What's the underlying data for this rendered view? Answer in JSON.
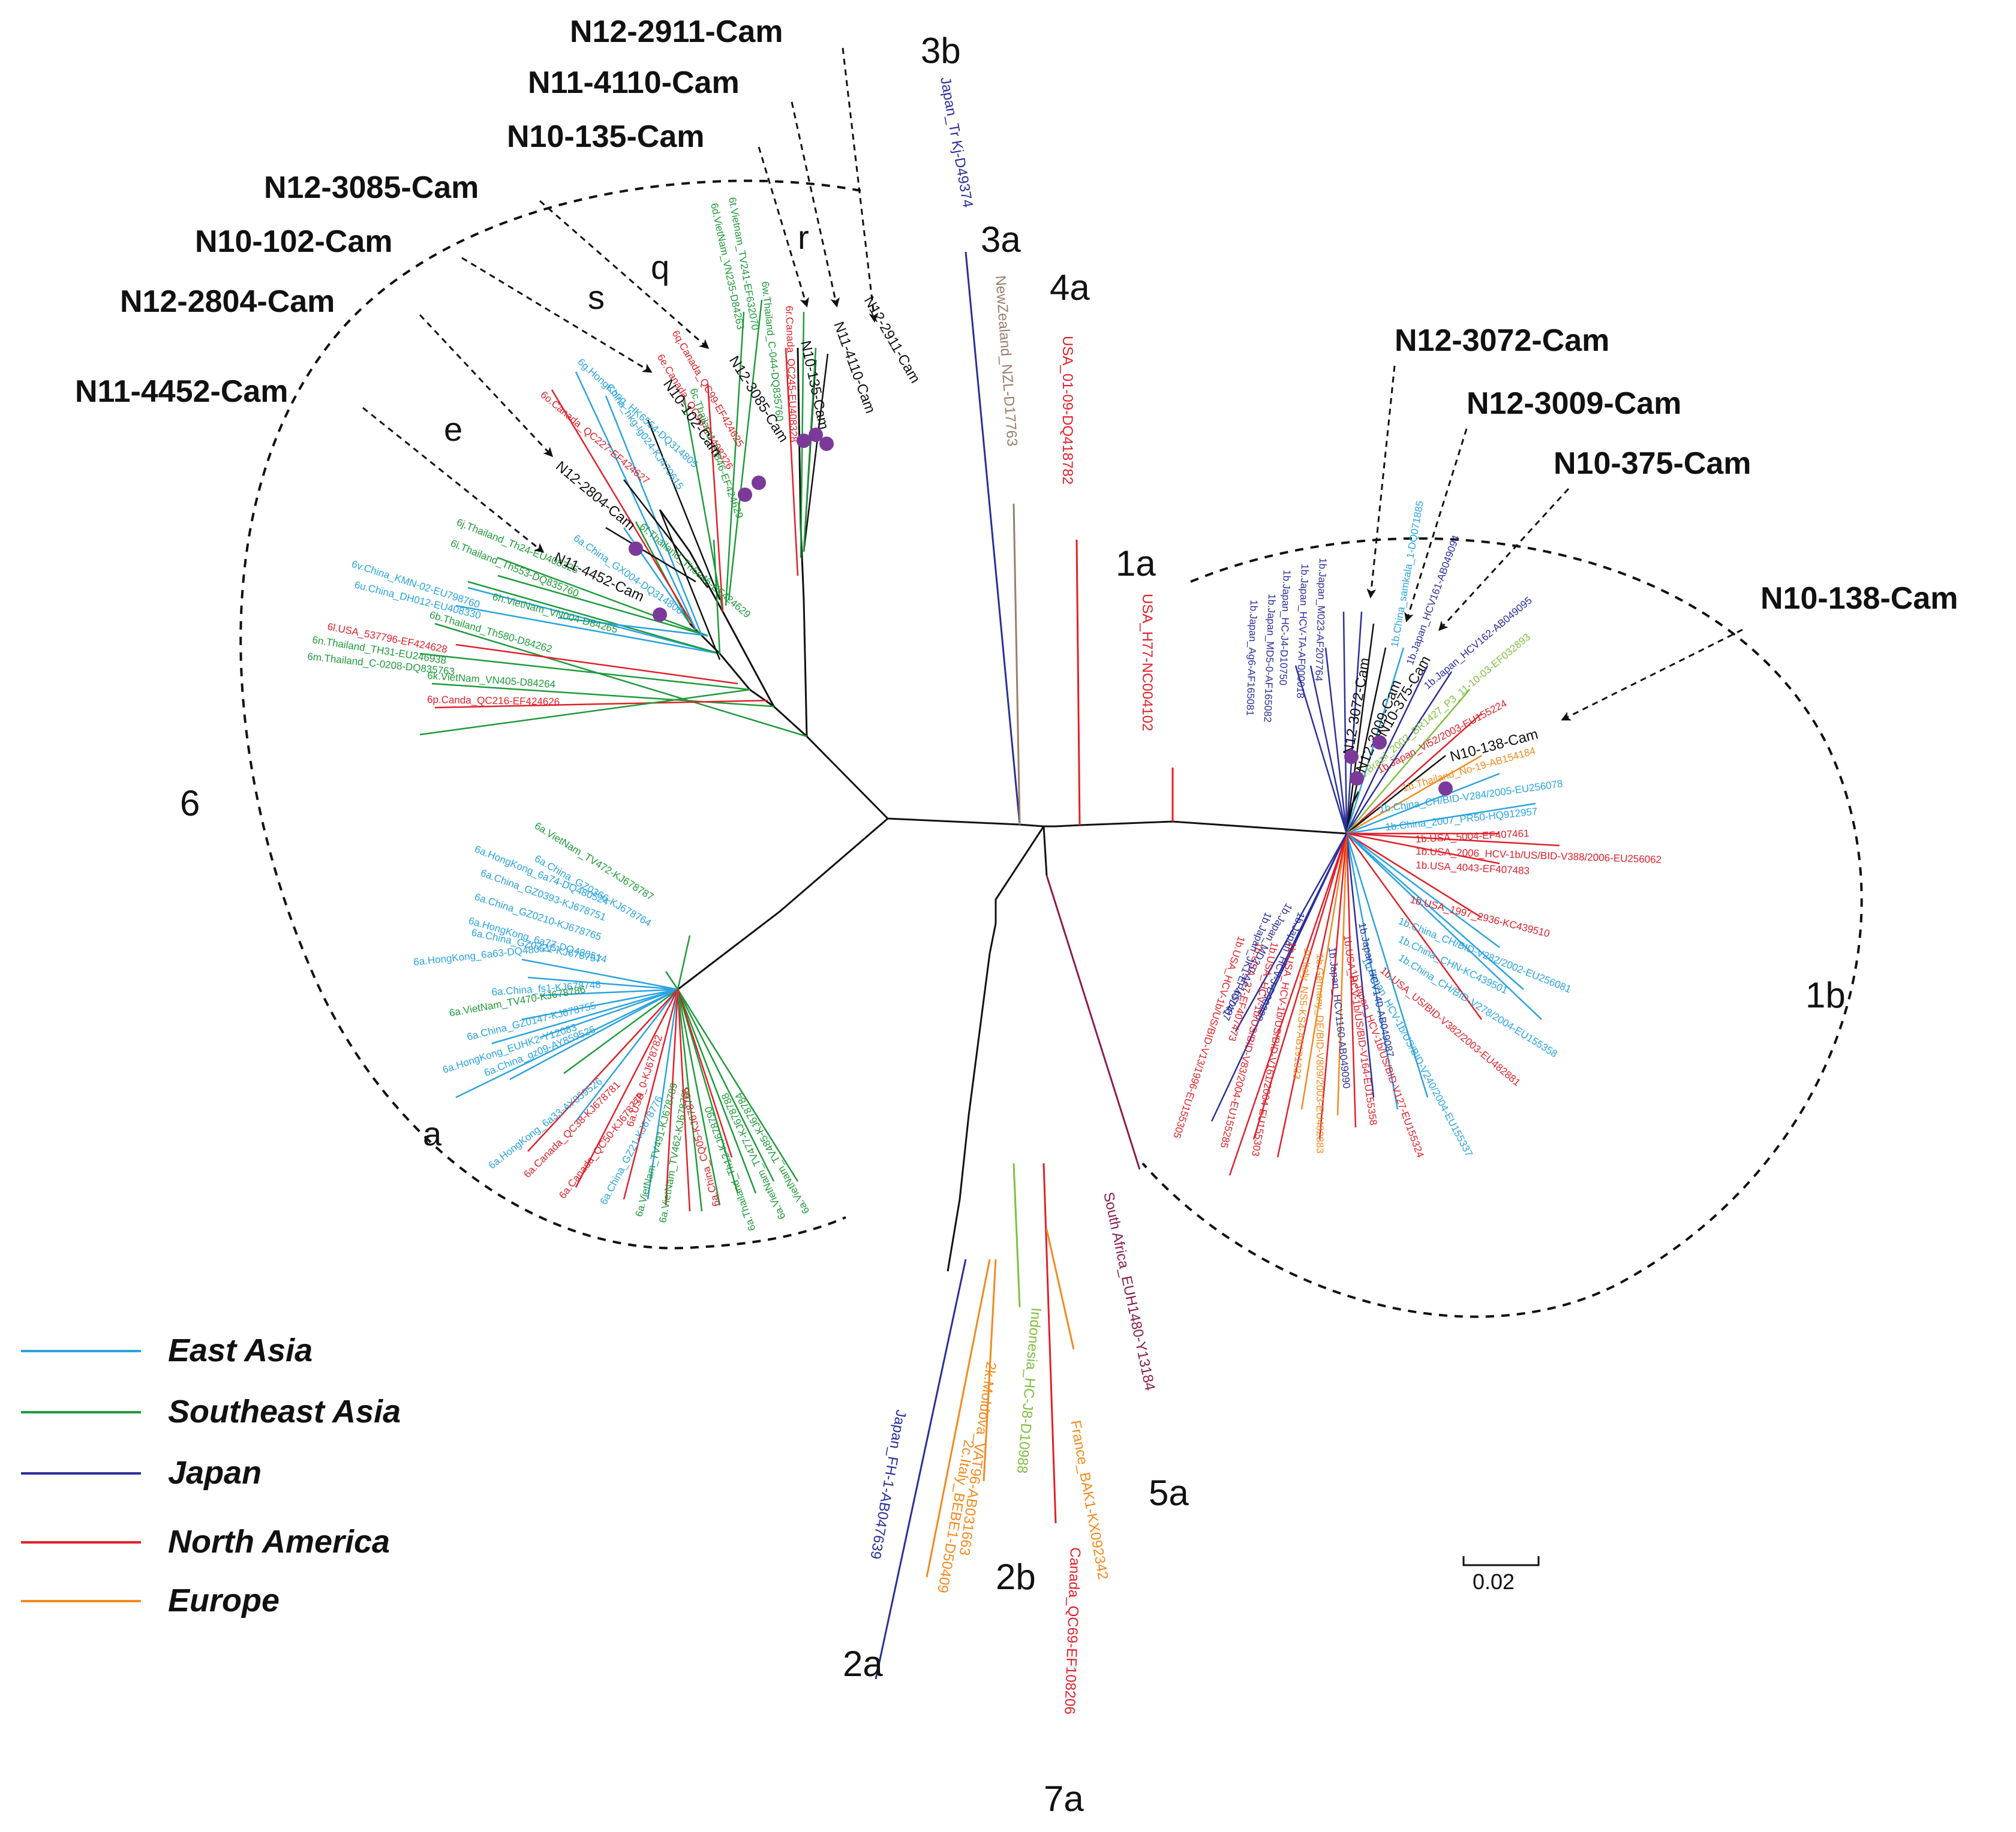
{
  "colors": {
    "east_asia": "#2aa3e0",
    "southeast_asia": "#1e9a3a",
    "japan": "#2b2f9a",
    "north_america": "#e0202a",
    "europe": "#f28a1e",
    "oceania": "#9a7d6a",
    "africa": "#8a1d4e",
    "indonesia": "#7fbf3f",
    "cambodia": "#111111",
    "marker": "#7b3a9a"
  },
  "legend": {
    "east_asia": "East Asia",
    "southeast_asia": "Southeast Asia",
    "japan": "Japan",
    "north_america": "North America",
    "europe": "Europe"
  },
  "scale_bar": {
    "value": 0.02,
    "label": "0.02"
  },
  "genotype_labels": {
    "g6": "6",
    "g1a": "1a",
    "g1b": "1b",
    "g3a": "3a",
    "g3b": "3b",
    "g4a": "4a",
    "g2a": "2a",
    "g2b": "2b",
    "g5a": "5a",
    "g7a": "7a"
  },
  "subtype_labels": {
    "a": "a",
    "e": "e",
    "s": "s",
    "q": "q",
    "r": "r"
  },
  "cambodian_isolates": {
    "n12_2911": "N12-2911-Cam",
    "n11_4110": "N11-4110-Cam",
    "n10_135": "N10-135-Cam",
    "n12_3085": "N12-3085-Cam",
    "n10_102": "N10-102-Cam",
    "n12_2804": "N12-2804-Cam",
    "n11_4452": "N11-4452-Cam",
    "n12_3072": "N12-3072-Cam",
    "n12_3009": "N12-3009-Cam",
    "n10_375": "N10-375-Cam",
    "n10_138": "N10-138-Cam"
  },
  "reference_tips": {
    "t3b": "Japan_Tr Kj-D49374",
    "t3a": "NewZealand_NZL-D17763",
    "t4a": "USA_01-09-DQ418782",
    "t1a": "USA_H77-NC004102",
    "t2a": "Japan_FH-1-AB047639",
    "t2c": "2c.Italy_BEBE1-D50409",
    "t2k": "2k.Moldova_VAT96-AB031663",
    "t2b": "Indonesia_HC-J8-D10988",
    "t7a": "Canada_QC69-EF108206",
    "t_france": "France_BAK1-KX092342",
    "t5a": "South Africa_EUH1480-Y13184",
    "g6_tips": [
      "6b.Thailand_Th580-D84262",
      "6k.VietNam_VN405-D84264",
      "6p.Canda_QC216-EF424626",
      "6m.Thailand_C-0208-DQ835763",
      "6n.Thailand_TH31-EU246938",
      "6l.USA_537796-EF424628",
      "6u.China_DH012-EU408330",
      "6v.China_KMN-02-EU798760",
      "6h.VietNam_VN004-D84265",
      "6i.Thailand_Th553-DQ835760",
      "6j.Thailand_Th24-EU408325",
      "6a.China_GX004-DQ314806",
      "6f.Thailand_Th6e46-EF424629",
      "6o.Canada_QC227-EF424627",
      "6g.HongKong_HK6554-DQ314805",
      "China_hkg-lg024-KJ470615",
      "6e.Canada_QC98-EU408326",
      "6q.Canada_QC99-EF424625",
      "6c.Thailand_Th846-EF424629",
      "6d.VietNam_VN235-D84263",
      "6t.Vietnam_TV241-EF632070",
      "6r.Canada_QC245-EU408328",
      "6w.Thailand_C-044-DQ835760",
      "6a.VietNam_TV472-KJ678787",
      "6a.China_GZ0366-KJ678764",
      "6a.HongKong_6a74-DQ480524",
      "6a.China_GZ0393-KJ678751",
      "6a.China_GZ0210-KJ678765",
      "6a.HongKong_6a77-DQ480514",
      "6a.China_GZ0221-KJ678757",
      "6a.HongKong_6a63-DQ480513",
      "6a.China_fs1-KJ678748",
      "6a.VietNam_TV470-KJ678786",
      "6a.China_GZ0147-KJ678755",
      "6a.HongKong_EUHK2-Y12083",
      "6a.China_gz09-AY859526",
      "6a.HongKong_6a33-AY859526",
      "6a.Canada_QC38-KJ678781",
      "6a.Canada_QC50-KJ678779",
      "6a.China_GZ21-KJ678776",
      "6a.USA_0-KJ678782",
      "6a.VietNam_TV491-KJ678789",
      "6a.VietNam_TV462-KJ678785",
      "6a.Thailand_Th12-KJ678790",
      "6a.VietNam_TV477-KJ678788",
      "6a.China_CQ05-KJ678766",
      "6a.VietNam_TV485-KJ678784"
    ],
    "g1b_tips": [
      "1b.Japan_Ag6-AF165081",
      "1b.Japan_MD5-0-AF165082",
      "1b.Japan_HC-J4-D10750",
      "1b.Japan_HCV-TA-AF000018",
      "1b.Japan_M023-AF207764",
      "1b.Japan_HCV161-AB049094",
      "1b.Japan_HCV162-AB049095",
      "1b.China_samkala_1-DQ071885",
      "1b.Brazil_2002_BR1427_P3_11-10-03-EF032893",
      "1b.Japan_Vi52/2003-EU155224",
      "1b.Thailand_No-19-AB154184",
      "1b.China_CH/BID-V284/2005-EU256078",
      "1b.China_2007_PR50-HQ912957",
      "1b.USA_5004-EF407461",
      "1b.USA_2006_HCV-1b/US/BID-V388/2006-EU256062",
      "1b.USA_4043-EF407483",
      "1b.USA_1997_2936-KC439510",
      "1b.China_CH/BID-V282/2002-EU256081",
      "1b.China_CHN-KC439501",
      "1b.China_CH/BID-V278/2004-EU155358",
      "1b.USA_US/BID-V382/2003-EU482881",
      "1b.Japan_HCV-J-D90208",
      "1b.Japan_HCV-1b/US/BID-V240/2004-EU155337",
      "1b.Japan_HCV-1b/US/BID-V127-EU155324",
      "1b.Japan_HCV140-AB049087",
      "1b.USA_HCV-1b/US/BID-V164-EU155358",
      "1b.Japan_HCV1160-AB049090",
      "1b.Germany_DE/BID-V809/2003-EU482883",
      "1b.Italy_NS5-KS4-AB191333",
      "1b.USA_HCV-1b/US/BID-V161/2004-EU155303",
      "1b.USA_HCV-1b/US/BID-V83/2004-EU155285",
      "1b.USA_37-EF407473",
      "1b.Japan_MD2-0-AF165041",
      "1b.Japan_JK1-EF407487",
      "1b.USA_HCV-1b/US/BID-V13/1996-EU155305"
    ]
  }
}
